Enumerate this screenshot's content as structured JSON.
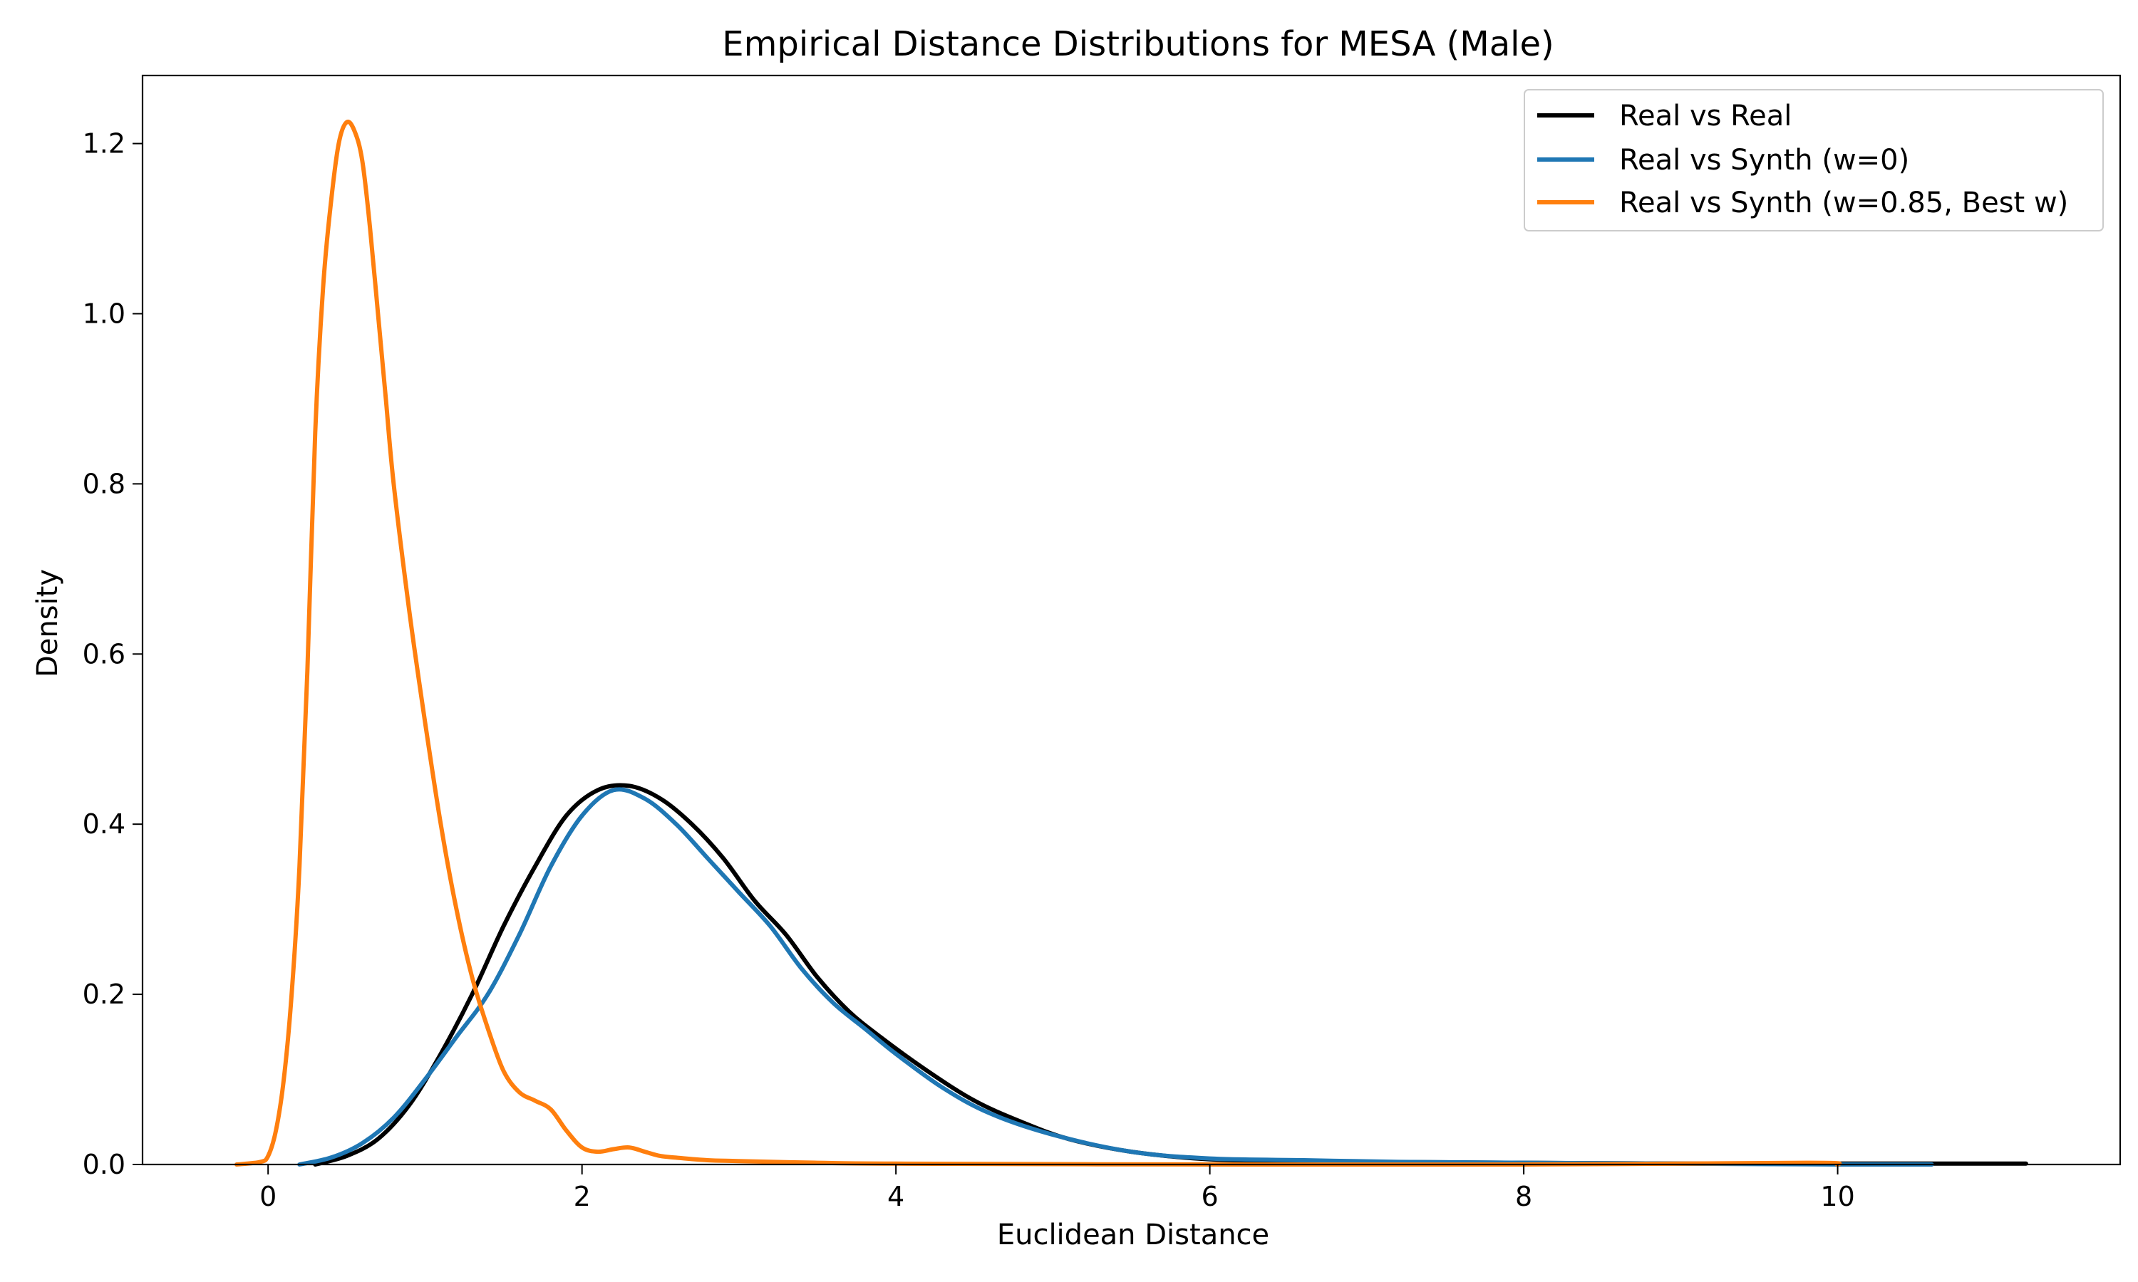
{
  "chart_data": {
    "type": "line",
    "title": "Empirical Distance Distributions for MESA (Male)",
    "xlabel": "Euclidean Distance",
    "ylabel": "Density",
    "xlim": [
      -0.8,
      11.8
    ],
    "ylim": [
      0,
      1.28
    ],
    "xticks": [
      0,
      2,
      4,
      6,
      8,
      10
    ],
    "yticks": [
      0.0,
      0.2,
      0.4,
      0.6,
      0.8,
      1.0,
      1.2
    ],
    "xtick_labels": [
      "0",
      "2",
      "4",
      "6",
      "8",
      "10"
    ],
    "ytick_labels": [
      "0.0",
      "0.2",
      "0.4",
      "0.6",
      "0.8",
      "1.0",
      "1.2"
    ],
    "grid": false,
    "legend_position": "top-right",
    "series": [
      {
        "name": "Real vs Real",
        "color": "#000000",
        "x": [
          0.3,
          0.5,
          0.7,
          0.9,
          1.1,
          1.3,
          1.5,
          1.7,
          1.9,
          2.1,
          2.3,
          2.5,
          2.7,
          2.9,
          3.1,
          3.3,
          3.5,
          3.7,
          3.9,
          4.2,
          4.5,
          4.8,
          5.1,
          5.5,
          6.0,
          6.5,
          7.0,
          8.0,
          9.0,
          10.0,
          11.2
        ],
        "y": [
          0.0,
          0.01,
          0.03,
          0.07,
          0.13,
          0.2,
          0.28,
          0.35,
          0.41,
          0.44,
          0.445,
          0.43,
          0.4,
          0.36,
          0.31,
          0.27,
          0.22,
          0.18,
          0.15,
          0.11,
          0.075,
          0.05,
          0.03,
          0.015,
          0.006,
          0.004,
          0.003,
          0.002,
          0.001,
          0.001,
          0.001
        ]
      },
      {
        "name": "Real vs Synth (w=0)",
        "color": "#1f77b4",
        "x": [
          0.2,
          0.4,
          0.6,
          0.8,
          1.0,
          1.2,
          1.4,
          1.6,
          1.8,
          2.0,
          2.2,
          2.4,
          2.6,
          2.8,
          3.0,
          3.2,
          3.4,
          3.6,
          3.8,
          4.0,
          4.3,
          4.6,
          5.0,
          5.5,
          6.0,
          6.6,
          7.2,
          8.0,
          9.0,
          10.0,
          10.6
        ],
        "y": [
          0.0,
          0.008,
          0.025,
          0.055,
          0.1,
          0.15,
          0.2,
          0.27,
          0.35,
          0.41,
          0.44,
          0.43,
          0.4,
          0.36,
          0.32,
          0.28,
          0.23,
          0.19,
          0.16,
          0.13,
          0.09,
          0.06,
          0.035,
          0.015,
          0.007,
          0.005,
          0.003,
          0.002,
          0.001,
          0.0,
          0.0
        ]
      },
      {
        "name": "Real vs Synth (w=0.85, Best w)",
        "color": "#ff7f0e",
        "x": [
          -0.2,
          -0.05,
          0.0,
          0.05,
          0.1,
          0.15,
          0.2,
          0.25,
          0.3,
          0.35,
          0.4,
          0.45,
          0.5,
          0.55,
          0.6,
          0.65,
          0.7,
          0.75,
          0.8,
          0.9,
          1.0,
          1.1,
          1.2,
          1.3,
          1.4,
          1.5,
          1.6,
          1.7,
          1.8,
          1.9,
          2.0,
          2.1,
          2.2,
          2.3,
          2.4,
          2.5,
          2.6,
          2.8,
          3.0,
          3.5,
          4.0,
          6.0,
          8.0,
          9.8,
          10.0
        ],
        "y": [
          0.0,
          0.003,
          0.01,
          0.04,
          0.1,
          0.2,
          0.35,
          0.58,
          0.86,
          1.03,
          1.13,
          1.2,
          1.225,
          1.215,
          1.18,
          1.1,
          1.0,
          0.9,
          0.8,
          0.65,
          0.52,
          0.4,
          0.3,
          0.22,
          0.16,
          0.11,
          0.085,
          0.075,
          0.065,
          0.04,
          0.02,
          0.015,
          0.018,
          0.02,
          0.015,
          0.01,
          0.008,
          0.005,
          0.004,
          0.002,
          0.001,
          0.0,
          0.0,
          0.002,
          0.0
        ]
      }
    ]
  }
}
